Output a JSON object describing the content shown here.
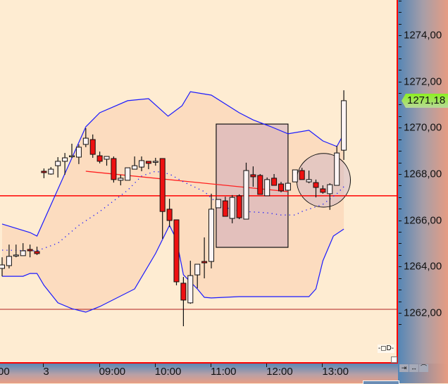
{
  "chart_data": {
    "type": "candlestick",
    "title": "",
    "ylim": [
      1260.5,
      1275.5
    ],
    "yticks": [
      "1262,00",
      "1264,00",
      "1266,00",
      "1268,00",
      "1270,00",
      "1272,00",
      "1274,00"
    ],
    "ytick_values": [
      1262,
      1264,
      1266,
      1268,
      1270,
      1272,
      1274
    ],
    "xticks": [
      {
        "label": "00",
        "bar": -1
      },
      {
        "label": "3",
        "bar": 6
      },
      {
        "label": "09:00",
        "bar": 14
      },
      {
        "label": "10:00",
        "bar": 22
      },
      {
        "label": "11:00",
        "bar": 30
      },
      {
        "label": "12:00",
        "bar": 38
      },
      {
        "label": "13:00",
        "bar": 46
      }
    ],
    "last_price": "1271,18",
    "candles": [
      [
        1263.92,
        1264.4,
        1263.58,
        1264.07
      ],
      [
        1264.04,
        1264.95,
        1263.92,
        1264.44
      ],
      [
        1264.5,
        1264.95,
        1264.4,
        1264.5
      ],
      [
        1264.47,
        1265.01,
        1264.47,
        1264.68
      ],
      [
        1264.74,
        1264.95,
        1264.4,
        1264.68
      ],
      [
        1264.65,
        1264.86,
        1264.5,
        1264.56
      ],
      [
        1268.12,
        1268.24,
        1267.82,
        1268.06
      ],
      [
        1268.0,
        1268.3,
        1267.97,
        1268.21
      ],
      [
        1268.36,
        1268.73,
        1267.85,
        1268.55
      ],
      [
        1268.55,
        1268.91,
        1267.97,
        1268.7
      ],
      [
        1268.79,
        1269.31,
        1268.7,
        1268.79
      ],
      [
        1268.73,
        1269.28,
        1268.43,
        1269.16
      ],
      [
        1269.28,
        1269.98,
        1269.16,
        1269.55
      ],
      [
        1269.49,
        1269.71,
        1268.7,
        1268.85
      ],
      [
        1268.79,
        1268.97,
        1268.46,
        1268.55
      ],
      [
        1268.64,
        1268.76,
        1268.36,
        1268.76
      ],
      [
        1268.67,
        1268.76,
        1267.63,
        1267.76
      ],
      [
        1267.73,
        1267.97,
        1267.51,
        1267.82
      ],
      [
        1267.73,
        1268.27,
        1267.73,
        1268.27
      ],
      [
        1268.21,
        1268.76,
        1268.21,
        1268.36
      ],
      [
        1268.3,
        1268.76,
        1268.12,
        1268.58
      ],
      [
        1268.55,
        1268.55,
        1268.21,
        1268.46
      ],
      [
        1268.52,
        1268.7,
        1268.36,
        1268.55
      ],
      [
        1268.67,
        1268.67,
        1265.2,
        1266.38
      ],
      [
        1266.48,
        1266.93,
        1265.71,
        1265.99
      ],
      [
        1266.02,
        1266.02,
        1263.19,
        1263.34
      ],
      [
        1263.28,
        1263.55,
        1261.42,
        1262.55
      ],
      [
        1262.43,
        1264.25,
        1262.39,
        1263.61
      ],
      [
        1263.64,
        1264.1,
        1263.06,
        1264.1
      ],
      [
        1264.22,
        1265.26,
        1263.49,
        1264.16
      ],
      [
        1264.22,
        1267.15,
        1263.92,
        1266.48
      ],
      [
        1266.54,
        1266.9,
        1266.54,
        1266.9
      ],
      [
        1266.84,
        1267.02,
        1266.17,
        1266.17
      ],
      [
        1266.08,
        1267.09,
        1265.87,
        1266.99
      ],
      [
        1267.06,
        1267.12,
        1266.05,
        1266.11
      ],
      [
        1266.05,
        1268.49,
        1266.05,
        1268.15
      ],
      [
        1267.97,
        1268.33,
        1267.45,
        1267.88
      ],
      [
        1267.94,
        1268.0,
        1267.12,
        1267.12
      ],
      [
        1267.06,
        1267.85,
        1267.06,
        1267.76
      ],
      [
        1267.82,
        1268.0,
        1267.51,
        1267.51
      ],
      [
        1267.57,
        1267.66,
        1267.21,
        1267.27
      ],
      [
        1267.3,
        1267.6,
        1267.3,
        1267.6
      ],
      [
        1267.66,
        1268.18,
        1267.66,
        1268.18
      ],
      [
        1268.15,
        1268.27,
        1267.76,
        1267.76
      ],
      [
        1267.66,
        1268.15,
        1267.6,
        1267.76
      ],
      [
        1267.63,
        1267.76,
        1266.99,
        1267.42
      ],
      [
        1267.36,
        1267.51,
        1267.15,
        1267.21
      ],
      [
        1267.15,
        1267.6,
        1266.45,
        1267.54
      ],
      [
        1267.51,
        1269.22,
        1267.51,
        1268.91
      ],
      [
        1269.03,
        1271.62,
        1268.61,
        1271.17
      ]
    ],
    "candle_fields": [
      "open",
      "high",
      "low",
      "close"
    ],
    "bollinger_upper": [
      [
        0,
        1265.84
      ],
      [
        4,
        1265.47
      ],
      [
        5,
        1265.32
      ],
      [
        12,
        1270.04
      ],
      [
        14,
        1270.65
      ],
      [
        18,
        1271.17
      ],
      [
        21,
        1271.26
      ],
      [
        23.8,
        1270.5
      ],
      [
        25.8,
        1270.95
      ],
      [
        27,
        1271.56
      ],
      [
        30,
        1271.41
      ],
      [
        34,
        1270.65
      ],
      [
        36,
        1270.34
      ],
      [
        38.6,
        1270.04
      ],
      [
        41,
        1269.74
      ],
      [
        44,
        1269.89
      ],
      [
        46,
        1269.43
      ],
      [
        48,
        1269.19
      ],
      [
        49,
        1269.74
      ]
    ],
    "bollinger_lower": [
      [
        0,
        1263.58
      ],
      [
        3,
        1263.58
      ],
      [
        4,
        1263.7
      ],
      [
        5,
        1263.7
      ],
      [
        6,
        1263.19
      ],
      [
        8,
        1262.43
      ],
      [
        10,
        1262.18
      ],
      [
        12,
        1262.03
      ],
      [
        14,
        1262.27
      ],
      [
        19,
        1263.03
      ],
      [
        22,
        1264.56
      ],
      [
        24,
        1265.78
      ],
      [
        25,
        1265.17
      ],
      [
        26,
        1263.64
      ],
      [
        28,
        1263.03
      ],
      [
        29,
        1262.67
      ],
      [
        30,
        1262.64
      ],
      [
        34,
        1262.7
      ],
      [
        44,
        1262.7
      ],
      [
        45,
        1263.03
      ],
      [
        46,
        1264.25
      ],
      [
        47.5,
        1265.32
      ],
      [
        49,
        1265.62
      ]
    ],
    "bollinger_mid": [
      [
        0,
        1264.71
      ],
      [
        5,
        1264.68
      ],
      [
        8,
        1265.01
      ],
      [
        11,
        1265.78
      ],
      [
        14,
        1266.38
      ],
      [
        18,
        1267.3
      ],
      [
        20,
        1267.91
      ],
      [
        22,
        1268.12
      ],
      [
        24,
        1268.0
      ],
      [
        26,
        1267.66
      ],
      [
        29,
        1267.24
      ],
      [
        31,
        1266.69
      ],
      [
        33,
        1266.45
      ],
      [
        35,
        1266.38
      ],
      [
        38,
        1266.32
      ],
      [
        40,
        1266.23
      ],
      [
        42,
        1266.23
      ],
      [
        43,
        1266.38
      ],
      [
        46,
        1266.69
      ],
      [
        48,
        1267.15
      ],
      [
        49,
        1267.45
      ]
    ],
    "horizontal_lines": [
      {
        "price": 1267.06,
        "color": "#ff0000"
      },
      {
        "price": 1262.15,
        "color": "#b02020"
      }
    ],
    "trend_line": {
      "from": [
        12,
        1268.12
      ],
      "to": [
        41,
        1267.24
      ],
      "color": "#ff2020"
    },
    "rectangle": {
      "from": [
        30.7,
        1270.16
      ],
      "to": [
        41,
        1264.83
      ]
    },
    "ellipse": {
      "center": [
        46.1,
        1267.73
      ],
      "radius_bars": 3.85
    },
    "colors": {
      "up": "#fdf4f4",
      "down": "#ee1111",
      "band": "#1a1aff",
      "background": "#feecd2",
      "band_fill": "#fcdcbf"
    }
  },
  "nav_icons": [
    "scroll-left-icon",
    "zoom-width-icon",
    "chart-style-icon"
  ],
  "plot_icon": "connector-icon"
}
